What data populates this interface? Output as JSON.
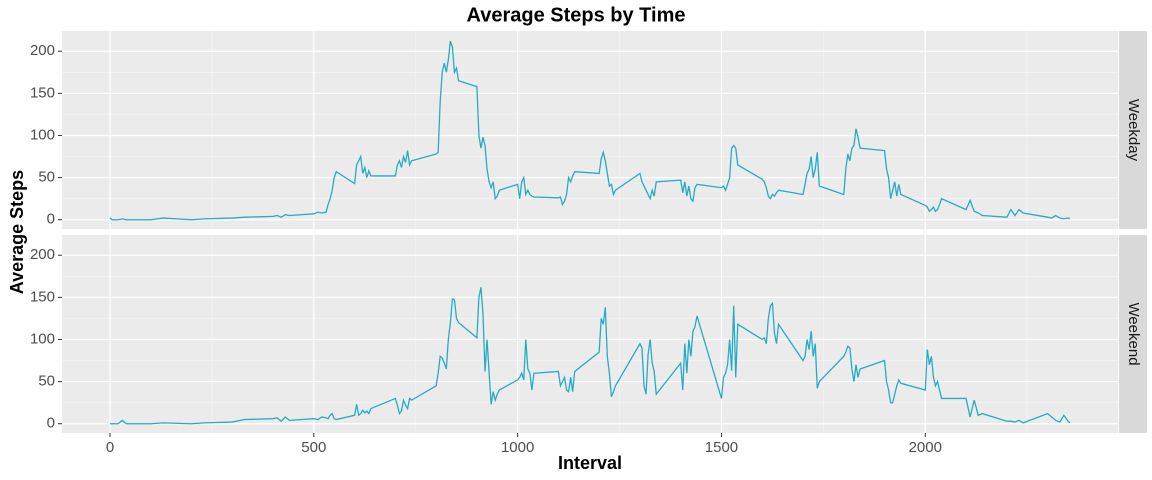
{
  "chart_data": {
    "type": "line",
    "title": "Average Steps by Time",
    "xlabel": "Interval",
    "ylabel": "Average Steps",
    "xlim": [
      -117.75,
      2472.75
    ],
    "xticks": [
      0,
      500,
      1000,
      1500,
      2000
    ],
    "x_minor_breaks": [
      250,
      750,
      1250,
      1750,
      2250
    ],
    "ylim": [
      -11,
      224
    ],
    "yticks": [
      0,
      50,
      100,
      150,
      200
    ],
    "y_minor_breaks": [
      25,
      75,
      125,
      175
    ],
    "grid": true,
    "x": [
      0,
      5,
      10,
      20,
      30,
      40,
      50,
      100,
      130,
      200,
      230,
      300,
      330,
      400,
      410,
      420,
      430,
      440,
      500,
      510,
      520,
      530,
      535,
      540,
      545,
      550,
      555,
      600,
      605,
      610,
      615,
      620,
      625,
      630,
      635,
      640,
      700,
      705,
      710,
      715,
      720,
      725,
      730,
      735,
      740,
      800,
      805,
      810,
      815,
      820,
      825,
      830,
      835,
      840,
      845,
      850,
      855,
      900,
      905,
      910,
      915,
      920,
      925,
      930,
      935,
      940,
      945,
      950,
      955,
      1000,
      1005,
      1010,
      1015,
      1020,
      1025,
      1030,
      1035,
      1040,
      1100,
      1105,
      1110,
      1115,
      1120,
      1125,
      1130,
      1135,
      1140,
      1200,
      1205,
      1210,
      1215,
      1220,
      1225,
      1230,
      1235,
      1240,
      1300,
      1305,
      1310,
      1315,
      1320,
      1325,
      1330,
      1335,
      1340,
      1400,
      1405,
      1410,
      1415,
      1420,
      1425,
      1430,
      1435,
      1440,
      1500,
      1505,
      1510,
      1515,
      1520,
      1525,
      1530,
      1535,
      1540,
      1600,
      1605,
      1610,
      1615,
      1620,
      1625,
      1630,
      1635,
      1640,
      1700,
      1705,
      1710,
      1715,
      1720,
      1725,
      1730,
      1735,
      1740,
      1800,
      1805,
      1810,
      1815,
      1820,
      1825,
      1830,
      1835,
      1840,
      1900,
      1905,
      1910,
      1915,
      1920,
      1925,
      1930,
      1935,
      1940,
      2000,
      2005,
      2010,
      2015,
      2020,
      2025,
      2030,
      2035,
      2040,
      2100,
      2110,
      2120,
      2130,
      2140,
      2200,
      2210,
      2220,
      2230,
      2240,
      2300,
      2310,
      2320,
      2330,
      2340,
      2350,
      2355
    ],
    "series": [
      {
        "name": "Weekday",
        "color": "#26abc6",
        "values": [
          2,
          0,
          0,
          0,
          1,
          0,
          0,
          0,
          2,
          0,
          1,
          2,
          3,
          4,
          5,
          3,
          6,
          5,
          7,
          9,
          8,
          9,
          18,
          25,
          35,
          50,
          57,
          43,
          65,
          70,
          75,
          55,
          62,
          50,
          58,
          52,
          52,
          65,
          70,
          62,
          75,
          68,
          82,
          65,
          70,
          78,
          80,
          140,
          175,
          186,
          175,
          190,
          212,
          205,
          175,
          180,
          165,
          158,
          100,
          85,
          98,
          88,
          60,
          45,
          38,
          45,
          25,
          28,
          35,
          42,
          25,
          45,
          50,
          30,
          35,
          30,
          28,
          27,
          26,
          27,
          18,
          22,
          30,
          50,
          45,
          52,
          57,
          55,
          72,
          80,
          70,
          55,
          40,
          42,
          30,
          35,
          55,
          45,
          40,
          35,
          30,
          25,
          35,
          28,
          45,
          47,
          32,
          45,
          28,
          40,
          25,
          22,
          38,
          42,
          38,
          40,
          35,
          42,
          50,
          85,
          88,
          85,
          65,
          48,
          45,
          38,
          28,
          25,
          30,
          28,
          32,
          35,
          30,
          42,
          55,
          60,
          75,
          50,
          60,
          80,
          40,
          30,
          60,
          78,
          70,
          85,
          88,
          108,
          98,
          85,
          82,
          60,
          50,
          25,
          35,
          45,
          28,
          42,
          30,
          17,
          15,
          10,
          12,
          15,
          10,
          12,
          18,
          25,
          12,
          23,
          10,
          8,
          5,
          3,
          12,
          5,
          12,
          8,
          3,
          2,
          5,
          2,
          1,
          2,
          1
        ]
      },
      {
        "name": "Weekend",
        "color": "#26abc6",
        "values": [
          0,
          0,
          0,
          0,
          4,
          0,
          0,
          0,
          1,
          0,
          1,
          2,
          5,
          6,
          7,
          3,
          8,
          4,
          6,
          5,
          8,
          7,
          6,
          10,
          12,
          6,
          5,
          10,
          23,
          10,
          12,
          16,
          13,
          15,
          12,
          18,
          30,
          22,
          12,
          15,
          28,
          22,
          18,
          30,
          28,
          45,
          60,
          80,
          78,
          72,
          65,
          100,
          120,
          148,
          147,
          125,
          120,
          102,
          150,
          162,
          130,
          62,
          100,
          60,
          23,
          38,
          28,
          35,
          40,
          52,
          55,
          60,
          52,
          100,
          65,
          60,
          40,
          60,
          62,
          45,
          50,
          55,
          40,
          38,
          55,
          38,
          62,
          85,
          125,
          118,
          138,
          80,
          60,
          32,
          38,
          45,
          95,
          90,
          45,
          35,
          82,
          100,
          72,
          62,
          35,
          72,
          40,
          95,
          60,
          100,
          80,
          110,
          115,
          128,
          30,
          55,
          60,
          70,
          100,
          63,
          140,
          55,
          118,
          100,
          102,
          95,
          125,
          140,
          143,
          108,
          95,
          118,
          75,
          80,
          100,
          88,
          110,
          80,
          95,
          42,
          50,
          80,
          85,
          92,
          90,
          65,
          50,
          70,
          55,
          65,
          75,
          50,
          40,
          25,
          25,
          35,
          45,
          52,
          48,
          40,
          88,
          70,
          80,
          55,
          45,
          50,
          40,
          30,
          30,
          8,
          28,
          10,
          12,
          3,
          3,
          2,
          4,
          1,
          12,
          8,
          4,
          2,
          10,
          3,
          1
        ]
      }
    ]
  }
}
